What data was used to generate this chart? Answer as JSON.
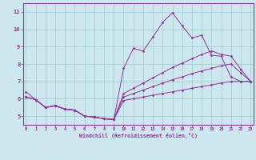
{
  "xlabel": "Windchill (Refroidissement éolien,°C)",
  "background_color": "#cce8ee",
  "grid_color": "#99cccc",
  "line_color": "#993399",
  "x_ticks": [
    0,
    1,
    2,
    3,
    4,
    5,
    6,
    7,
    8,
    9,
    10,
    11,
    12,
    13,
    14,
    15,
    16,
    17,
    18,
    19,
    20,
    21,
    22,
    23
  ],
  "y_ticks": [
    5,
    6,
    7,
    8,
    9,
    10,
    11
  ],
  "xlim": [
    -0.3,
    23.3
  ],
  "ylim": [
    4.5,
    11.5
  ],
  "series": [
    {
      "x": [
        0,
        1,
        2,
        3,
        4,
        5,
        6,
        7,
        8,
        9,
        10,
        11,
        12,
        13,
        14,
        15,
        16,
        17,
        18,
        19,
        20,
        21,
        22,
        23
      ],
      "y": [
        6.4,
        5.95,
        5.5,
        5.6,
        5.4,
        5.35,
        5.0,
        4.95,
        4.85,
        4.8,
        7.75,
        8.9,
        8.75,
        9.55,
        10.4,
        10.95,
        10.2,
        9.5,
        9.65,
        8.5,
        8.45,
        7.25,
        7.0,
        7.0
      ]
    },
    {
      "x": [
        0,
        1,
        2,
        3,
        4,
        5,
        6,
        7,
        8,
        9,
        10,
        11,
        12,
        13,
        14,
        15,
        16,
        17,
        18,
        19,
        20,
        21,
        22,
        23
      ],
      "y": [
        6.1,
        5.95,
        5.5,
        5.6,
        5.4,
        5.35,
        5.0,
        4.95,
        4.85,
        4.8,
        5.9,
        6.0,
        6.1,
        6.2,
        6.3,
        6.4,
        6.5,
        6.6,
        6.7,
        6.8,
        6.9,
        7.0,
        7.0,
        7.0
      ]
    },
    {
      "x": [
        0,
        1,
        2,
        3,
        4,
        5,
        6,
        7,
        8,
        9,
        10,
        11,
        12,
        13,
        14,
        15,
        16,
        17,
        18,
        19,
        20,
        21,
        22,
        23
      ],
      "y": [
        6.1,
        5.95,
        5.5,
        5.6,
        5.4,
        5.35,
        5.0,
        4.95,
        4.85,
        4.8,
        6.1,
        6.3,
        6.5,
        6.7,
        6.9,
        7.1,
        7.25,
        7.45,
        7.6,
        7.75,
        7.9,
        8.0,
        7.5,
        7.0
      ]
    },
    {
      "x": [
        0,
        1,
        2,
        3,
        4,
        5,
        6,
        7,
        8,
        9,
        10,
        11,
        12,
        13,
        14,
        15,
        16,
        17,
        18,
        19,
        20,
        21,
        22,
        23
      ],
      "y": [
        6.1,
        5.95,
        5.5,
        5.6,
        5.4,
        5.35,
        5.0,
        4.95,
        4.85,
        4.8,
        6.3,
        6.6,
        6.9,
        7.2,
        7.5,
        7.8,
        8.05,
        8.3,
        8.55,
        8.75,
        8.55,
        8.45,
        7.7,
        7.0
      ]
    }
  ]
}
